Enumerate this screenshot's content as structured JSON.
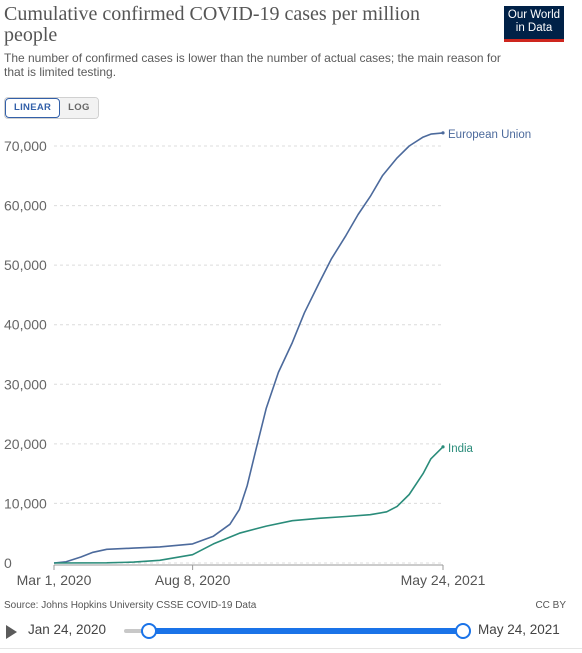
{
  "header": {
    "title": "Cumulative confirmed COVID-19 cases per million people",
    "subtitle": "The number of confirmed cases is lower than the number of actual cases; the main reason for that is limited testing.",
    "logo_line1": "Our World",
    "logo_line2": "in Data"
  },
  "controls": {
    "linear_label": "LINEAR",
    "log_label": "LOG",
    "active_scale": "linear"
  },
  "chart_data": {
    "type": "line",
    "title": "Cumulative confirmed COVID-19 cases per million people",
    "xlabel": "",
    "ylabel": "",
    "x_ticks": [
      "Mar 1, 2020",
      "Aug 8, 2020",
      "May 24, 2021"
    ],
    "x_tick_days": [
      0,
      160,
      449
    ],
    "y_ticks": [
      0,
      10000,
      20000,
      30000,
      40000,
      50000,
      60000,
      70000
    ],
    "y_tick_labels": [
      "0",
      "10,000",
      "20,000",
      "30,000",
      "40,000",
      "50,000",
      "60,000",
      "70,000"
    ],
    "xlim": [
      "2020-03-01",
      "2021-05-24"
    ],
    "ylim": [
      0,
      72000
    ],
    "grid": true,
    "legend": "inline-right",
    "series": [
      {
        "name": "European Union",
        "color": "#4c6a9c",
        "x": [
          "2020-03-01",
          "2020-03-15",
          "2020-04-01",
          "2020-04-15",
          "2020-05-01",
          "2020-06-01",
          "2020-07-01",
          "2020-08-08",
          "2020-09-01",
          "2020-09-20",
          "2020-10-01",
          "2020-10-10",
          "2020-10-20",
          "2020-11-01",
          "2020-11-15",
          "2020-12-01",
          "2020-12-15",
          "2021-01-01",
          "2021-01-15",
          "2021-02-01",
          "2021-02-15",
          "2021-03-01",
          "2021-03-15",
          "2021-04-01",
          "2021-04-15",
          "2021-05-01",
          "2021-05-10",
          "2021-05-24"
        ],
        "values": [
          0,
          200,
          1000,
          1800,
          2300,
          2500,
          2700,
          3200,
          4500,
          6500,
          9000,
          13000,
          19000,
          26000,
          32000,
          37000,
          42000,
          47000,
          51000,
          55000,
          58500,
          61500,
          65000,
          68000,
          70000,
          71500,
          72000,
          72200
        ]
      },
      {
        "name": "India",
        "color": "#2a8c7a",
        "x": [
          "2020-03-01",
          "2020-05-01",
          "2020-06-01",
          "2020-07-01",
          "2020-08-08",
          "2020-09-01",
          "2020-10-01",
          "2020-11-01",
          "2020-12-01",
          "2021-01-01",
          "2021-02-01",
          "2021-03-01",
          "2021-03-20",
          "2021-04-01",
          "2021-04-15",
          "2021-05-01",
          "2021-05-10",
          "2021-05-24"
        ],
        "values": [
          0,
          30,
          150,
          450,
          1400,
          3200,
          5000,
          6200,
          7100,
          7500,
          7800,
          8100,
          8600,
          9500,
          11500,
          15000,
          17500,
          19500
        ]
      }
    ]
  },
  "footer": {
    "source": "Source: Johns Hopkins University CSSE COVID-19 Data",
    "license": "CC BY"
  },
  "timeline": {
    "start_label": "Jan 24, 2020",
    "end_label": "May 24, 2021"
  }
}
